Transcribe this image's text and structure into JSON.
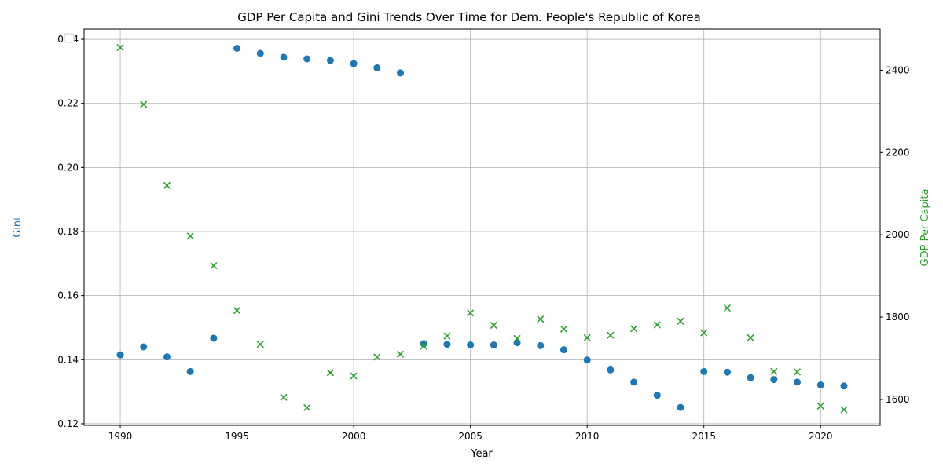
{
  "chart_data": {
    "type": "scatter",
    "title": "GDP Per Capita and Gini Trends Over Time for Dem. People's Republic of Korea",
    "xlabel": "Year",
    "ylabel_left": "Gini",
    "ylabel_right": "GDP Per Capita",
    "xlim": [
      1988.45,
      2022.55
    ],
    "ylim_left": [
      0.1195,
      0.2432
    ],
    "ylim_right": [
      1537,
      2500
    ],
    "grid": true,
    "legend": "top-left (empty)",
    "x_ticks": [
      1990,
      1995,
      2000,
      2005,
      2010,
      2015,
      2020
    ],
    "y_left_ticks": [
      0.12,
      0.14,
      0.16,
      0.18,
      0.2,
      0.22,
      0.24
    ],
    "y_right_ticks": [
      1600,
      1800,
      2000,
      2200,
      2400
    ],
    "colors": {
      "gini": "#1f77b4",
      "gdp": "#2ca02c",
      "text": "#000000"
    },
    "series": [
      {
        "axis": "left",
        "marker": "circle",
        "color": "#1f77b4",
        "x": [
          1990,
          1991,
          1992,
          1993,
          1994,
          1995,
          1996,
          1997,
          1998,
          1999,
          2000,
          2001,
          2002,
          2003,
          2004,
          2005,
          2006,
          2007,
          2008,
          2009,
          2010,
          2011,
          2012,
          2013,
          2014,
          2015,
          2016,
          2017,
          2018,
          2019,
          2020,
          2021
        ],
        "y": [
          0.1415,
          0.144,
          0.1409,
          0.1363,
          0.1467,
          0.2372,
          0.2356,
          0.2344,
          0.2339,
          0.2334,
          0.2324,
          0.2311,
          0.2295,
          0.145,
          0.1448,
          0.1446,
          0.1446,
          0.1453,
          0.1444,
          0.1431,
          0.1399,
          0.1368,
          0.133,
          0.1289,
          0.1251,
          0.1363,
          0.1361,
          0.1344,
          0.1338,
          0.133,
          0.1321,
          0.1318
        ]
      },
      {
        "axis": "right",
        "marker": "x",
        "color": "#2ca02c",
        "x": [
          1990,
          1991,
          1992,
          1993,
          1994,
          1995,
          1996,
          1997,
          1998,
          1999,
          2000,
          2001,
          2002,
          2003,
          2004,
          2005,
          2006,
          2007,
          2008,
          2009,
          2010,
          2011,
          2012,
          2013,
          2014,
          2015,
          2016,
          2017,
          2018,
          2019,
          2020,
          2021
        ],
        "y": [
          2455,
          2317,
          2120,
          1997,
          1925,
          1816,
          1734,
          1605,
          1580,
          1665,
          1657,
          1703,
          1710,
          1730,
          1754,
          1810,
          1780,
          1748,
          1795,
          1771,
          1750,
          1756,
          1772,
          1781,
          1790,
          1762,
          1822,
          1750,
          1668,
          1667,
          1584,
          1575
        ]
      }
    ]
  }
}
